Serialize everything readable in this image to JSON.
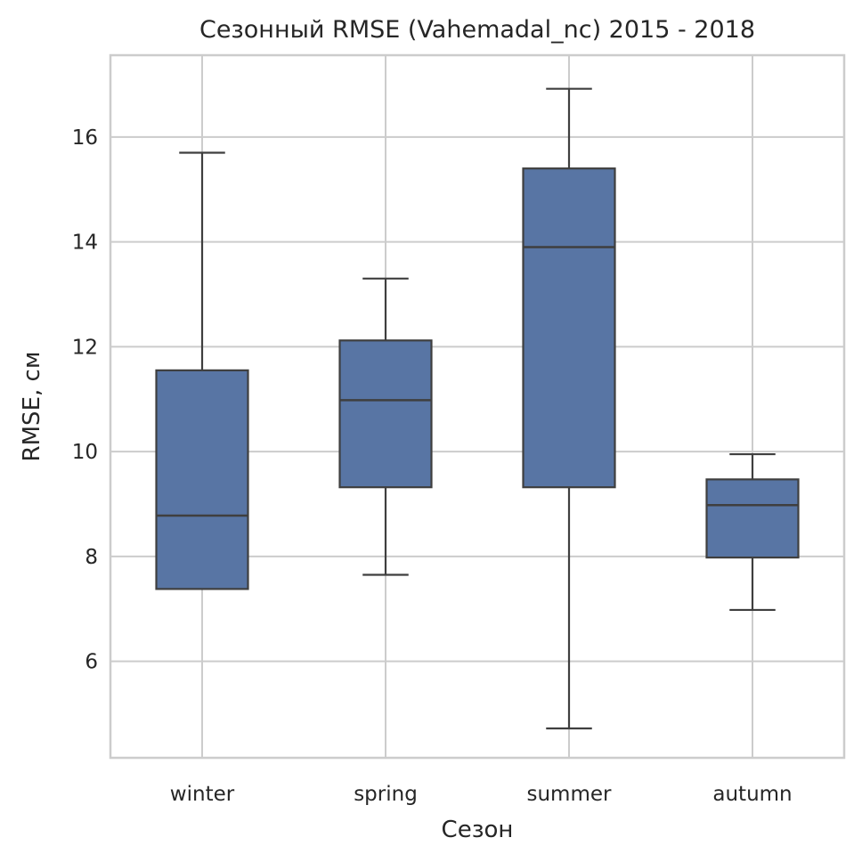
{
  "chart_data": {
    "type": "box",
    "title": "Сезонный RMSE (Vahemadal_nc) 2015 - 2018",
    "xlabel": "Сезон",
    "ylabel": "RMSE, см",
    "categories": [
      "winter",
      "spring",
      "summer",
      "autumn"
    ],
    "boxes": [
      {
        "category": "winter",
        "whisker_low": 7.38,
        "q1": 7.38,
        "median": 8.78,
        "q3": 11.55,
        "whisker_high": 15.7
      },
      {
        "category": "spring",
        "whisker_low": 7.65,
        "q1": 9.32,
        "median": 10.98,
        "q3": 12.12,
        "whisker_high": 13.3
      },
      {
        "category": "summer",
        "whisker_low": 4.72,
        "q1": 9.32,
        "median": 13.9,
        "q3": 15.4,
        "whisker_high": 16.92
      },
      {
        "category": "autumn",
        "whisker_low": 6.98,
        "q1": 7.98,
        "median": 8.98,
        "q3": 9.47,
        "whisker_high": 9.95
      }
    ],
    "yticks": [
      6,
      8,
      10,
      12,
      14,
      16
    ],
    "ylim": [
      4.16,
      17.56
    ],
    "grid": true,
    "colors": {
      "box_fill": "#5875a4",
      "box_edge": "#3f3f3f",
      "grid": "#cccccc",
      "axes_edge": "#cccccc"
    }
  }
}
